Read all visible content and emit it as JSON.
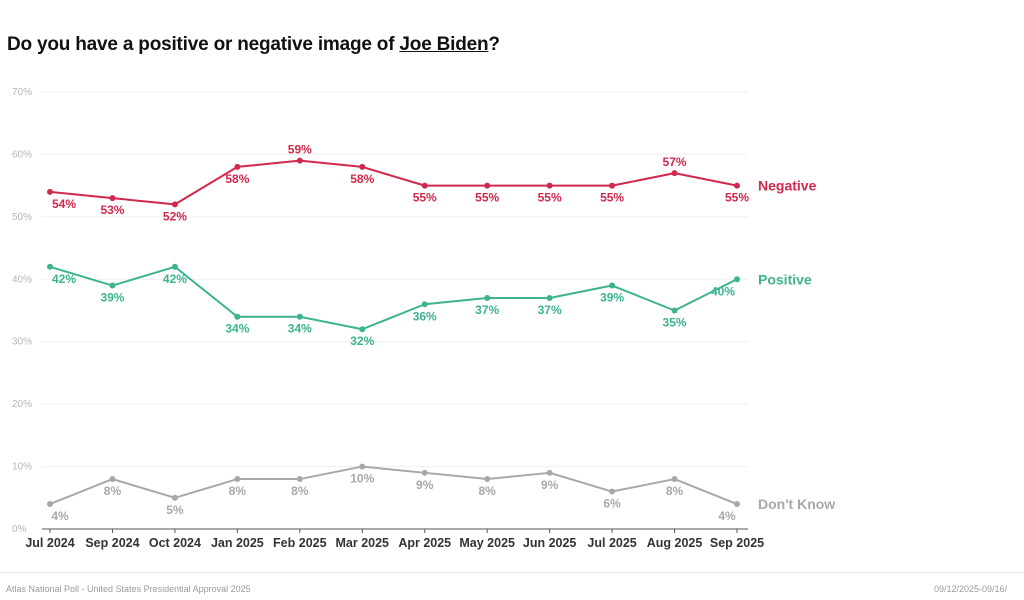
{
  "title": {
    "prefix": "Do you have a positive or negative image of ",
    "subject": "Joe Biden",
    "suffix": "?"
  },
  "footer": {
    "source": "Atlas National Poll - United States Presidential Approval 2025",
    "dates": "09/12/2025-09/16/"
  },
  "chart_data": {
    "type": "line",
    "title": "Do you have a positive or negative image of Joe Biden?",
    "xlabel": "",
    "ylabel": "",
    "x": [
      "Jul 2024",
      "Sep 2024",
      "Oct 2024",
      "Jan 2025",
      "Feb 2025",
      "Mar 2025",
      "Apr 2025",
      "May 2025",
      "Jun 2025",
      "Jul 2025",
      "Aug 2025",
      "Sep 2025"
    ],
    "ylim": [
      0,
      70
    ],
    "yticks": [
      0,
      10,
      20,
      30,
      40,
      50,
      60,
      70
    ],
    "ytick_labels": [
      "0%",
      "10%",
      "20%",
      "30%",
      "40%",
      "50%",
      "60%",
      "70%"
    ],
    "grid": true,
    "legend": "end-of-line labels (right)",
    "series": [
      {
        "name": "Negative",
        "color": "#d0294b",
        "values": [
          54,
          53,
          52,
          58,
          59,
          58,
          55,
          55,
          55,
          55,
          57,
          55
        ],
        "labels": [
          "54%",
          "53%",
          "52%",
          "58%",
          "59%",
          "58%",
          "55%",
          "55%",
          "55%",
          "55%",
          "57%",
          "55%"
        ]
      },
      {
        "name": "Positive",
        "color": "#3db38f",
        "values": [
          42,
          39,
          42,
          34,
          34,
          32,
          36,
          37,
          37,
          39,
          35,
          40
        ],
        "labels": [
          "42%",
          "39%",
          "42%",
          "34%",
          "34%",
          "32%",
          "36%",
          "37%",
          "37%",
          "39%",
          "35%",
          "40%"
        ]
      },
      {
        "name": "Don't Know",
        "color": "#a8a8a8",
        "values": [
          4,
          8,
          5,
          8,
          8,
          10,
          9,
          8,
          9,
          6,
          8,
          4
        ],
        "labels": [
          "4%",
          "8%",
          "5%",
          "8%",
          "8%",
          "10%",
          "9%",
          "8%",
          "9%",
          "6%",
          "8%",
          "4%"
        ]
      }
    ]
  }
}
